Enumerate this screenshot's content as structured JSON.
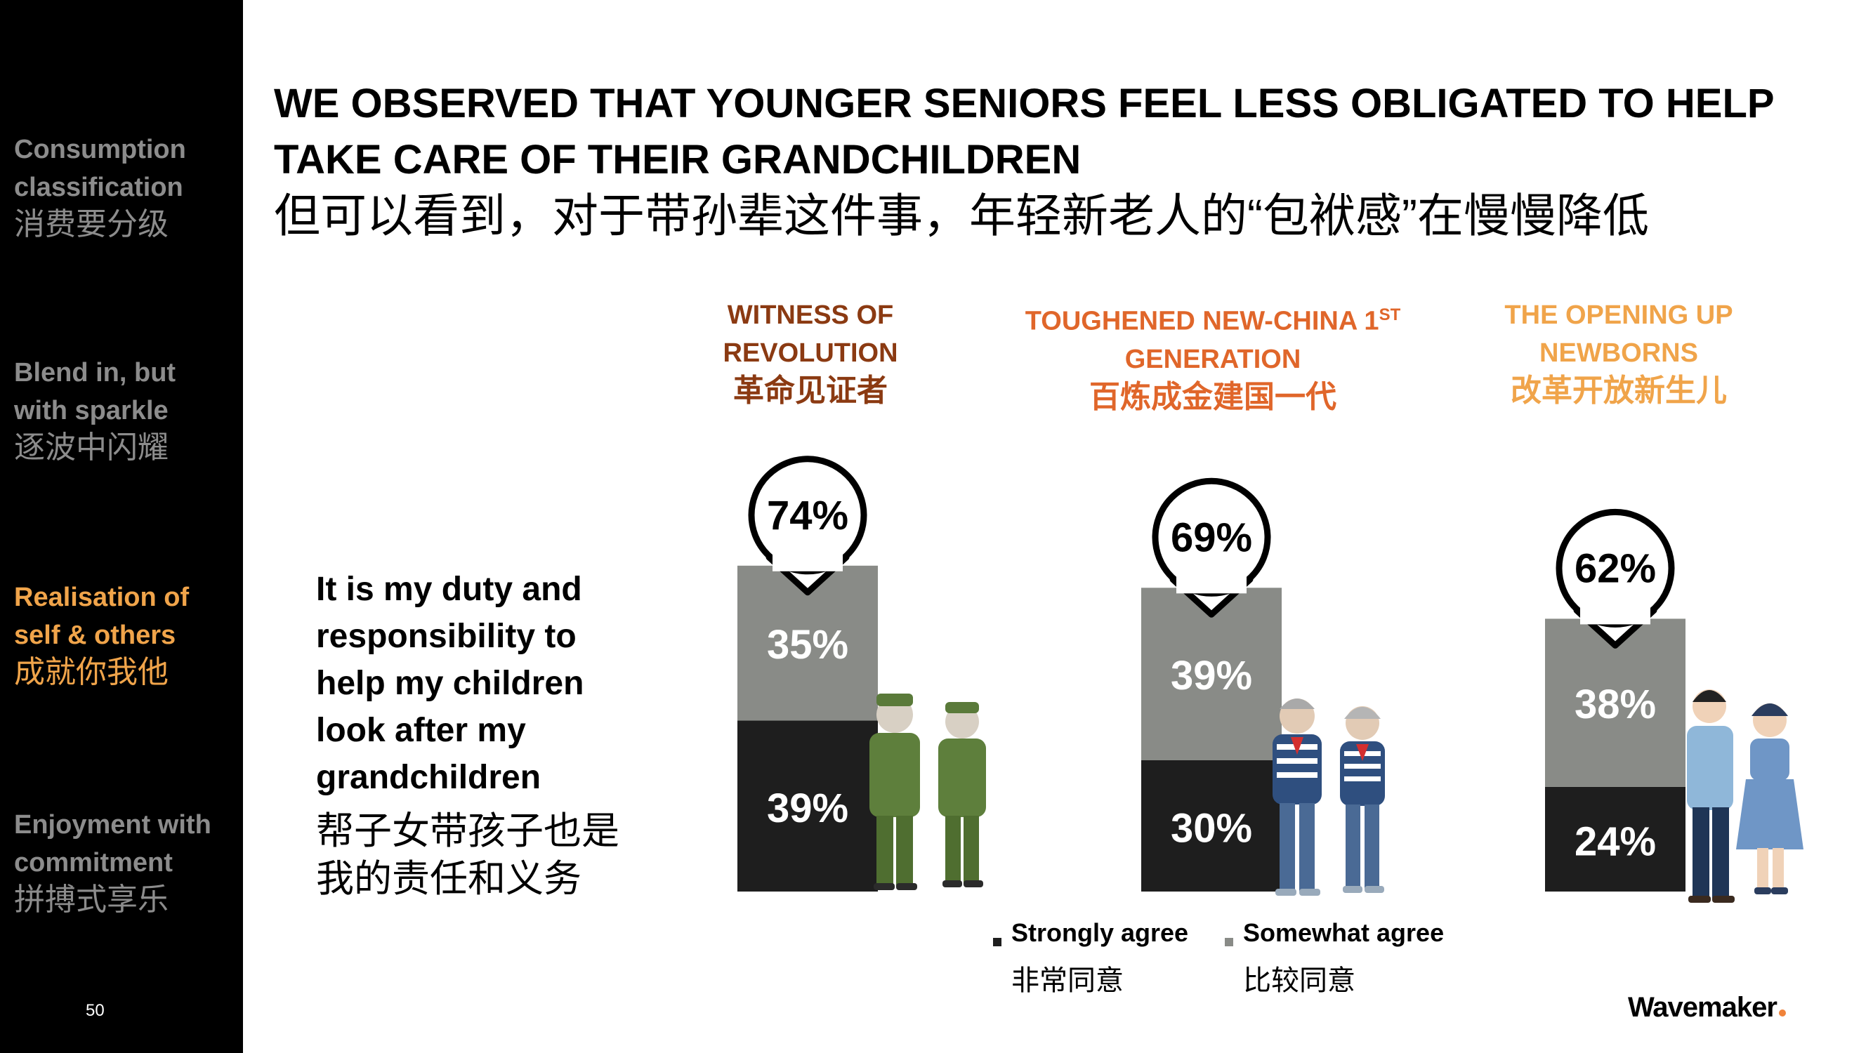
{
  "sidebar": {
    "items": [
      {
        "en": "Consumption\nclassification",
        "zh": "消费要分级",
        "active": false
      },
      {
        "en": "Blend in, but\nwith sparkle",
        "zh": "逐波中闪耀",
        "active": false
      },
      {
        "en": "Realisation of\nself & others",
        "zh": "成就你我他",
        "active": true
      },
      {
        "en": "Enjoyment with\ncommitment",
        "zh": "拼搏式享乐",
        "active": false
      }
    ],
    "page_number": "50",
    "active_color": "#f0a44a",
    "inactive_color": "#8c8c8c"
  },
  "title_en": "WE OBSERVED THAT YOUNGER SENIORS FEEL LESS OBLIGATED TO HELP\nTAKE CARE OF THEIR GRANDCHILDREN",
  "title_zh": "但可以看到，对于带孙辈这件事，年轻新老人的“包袱感”在慢慢降低",
  "statement": {
    "en": "It is my duty and\nresponsibility to\nhelp my children\nlook after my\ngrandchildren",
    "zh": "帮子女带孩子也是\n我的责任和义务"
  },
  "generations": [
    {
      "en": "WITNESS OF\nREVOLUTION",
      "zh": "革命见证者",
      "color": "#8b3a12"
    },
    {
      "en": "TOUGHENED NEW-CHINA 1",
      "sup": "ST",
      "en2": "\nGENERATION",
      "zh": "百炼成金建国一代",
      "color": "#e0662a"
    },
    {
      "en": "THE OPENING UP\nNEWBORNS",
      "zh": "改革开放新生儿",
      "color": "#f0a44a"
    }
  ],
  "chart_data": {
    "type": "bar",
    "stacked": true,
    "categories": [
      "WITNESS OF REVOLUTION 革命见证者",
      "TOUGHENED NEW-CHINA 1ST GENERATION 百炼成金建国一代",
      "THE OPENING UP NEWBORNS 改革开放新生儿"
    ],
    "series": [
      {
        "name": "Strongly agree",
        "values": [
          39,
          30,
          24
        ],
        "color": "#1e1e1e",
        "labels": [
          "39%",
          "30%",
          "24%"
        ]
      },
      {
        "name": "Somewhat agree",
        "values": [
          35,
          39,
          38
        ],
        "color": "#898b87",
        "labels": [
          "35%",
          "39%",
          "38%"
        ]
      }
    ],
    "totals": [
      74,
      69,
      62
    ],
    "total_labels": [
      "74%",
      "69%",
      "62%"
    ],
    "ylim": [
      0,
      100
    ],
    "legend": "bottom"
  },
  "legend": [
    {
      "en": "Strongly agree",
      "zh": "非常同意",
      "color": "#1e1e1e"
    },
    {
      "en": "Somewhat agree",
      "zh": "比较同意",
      "color": "#898b87"
    }
  ],
  "brand": "Wavemaker"
}
